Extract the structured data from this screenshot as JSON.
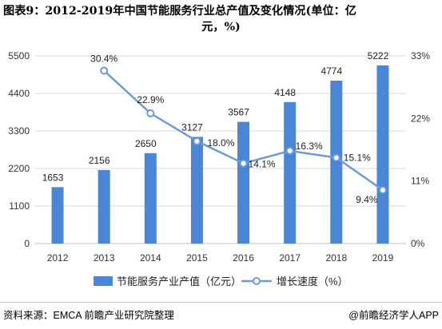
{
  "title": {
    "line1": "图表9：2012-2019年中国节能服务行业总产值及变化情况(单位：亿",
    "line2": "元，%)"
  },
  "chart_data": {
    "type": "bar+line",
    "categories": [
      "2012",
      "2013",
      "2014",
      "2015",
      "2016",
      "2017",
      "2018",
      "2019"
    ],
    "bar_series": {
      "name": "节能服务产业产值（亿元）",
      "values": [
        1653,
        2156,
        2650,
        3127,
        3567,
        4148,
        4774,
        5222
      ],
      "labels": [
        "1653",
        "2156",
        "2650",
        "3127",
        "3567",
        "4148",
        "4774",
        "5222"
      ],
      "color": "#4a86d8"
    },
    "line_series": {
      "name": "增长速度（%）",
      "values": [
        null,
        30.4,
        22.9,
        18.0,
        14.1,
        16.3,
        15.1,
        9.4
      ],
      "labels": [
        "",
        "30.4%",
        "22.9%",
        "18.0%",
        "14.1%",
        "16.3%",
        "15.1%",
        "9.4%"
      ],
      "color": "#6b9bdc"
    },
    "y_left": {
      "min": 0,
      "max": 5500,
      "ticks": [
        0,
        1100,
        2200,
        3300,
        4400,
        5500
      ],
      "tick_labels": [
        "0",
        "1100",
        "2200",
        "3300",
        "4400",
        "5500"
      ]
    },
    "y_right": {
      "min": 0,
      "max": 33,
      "ticks": [
        0,
        11,
        22,
        33
      ],
      "tick_labels": [
        "0%",
        "11%",
        "22%",
        "33%"
      ]
    },
    "grid": true,
    "legend": "bottom"
  },
  "footer": {
    "source": "资料来源：EMCA 前瞻产业研究院整理",
    "brand": "@前瞻经济学人APP"
  }
}
